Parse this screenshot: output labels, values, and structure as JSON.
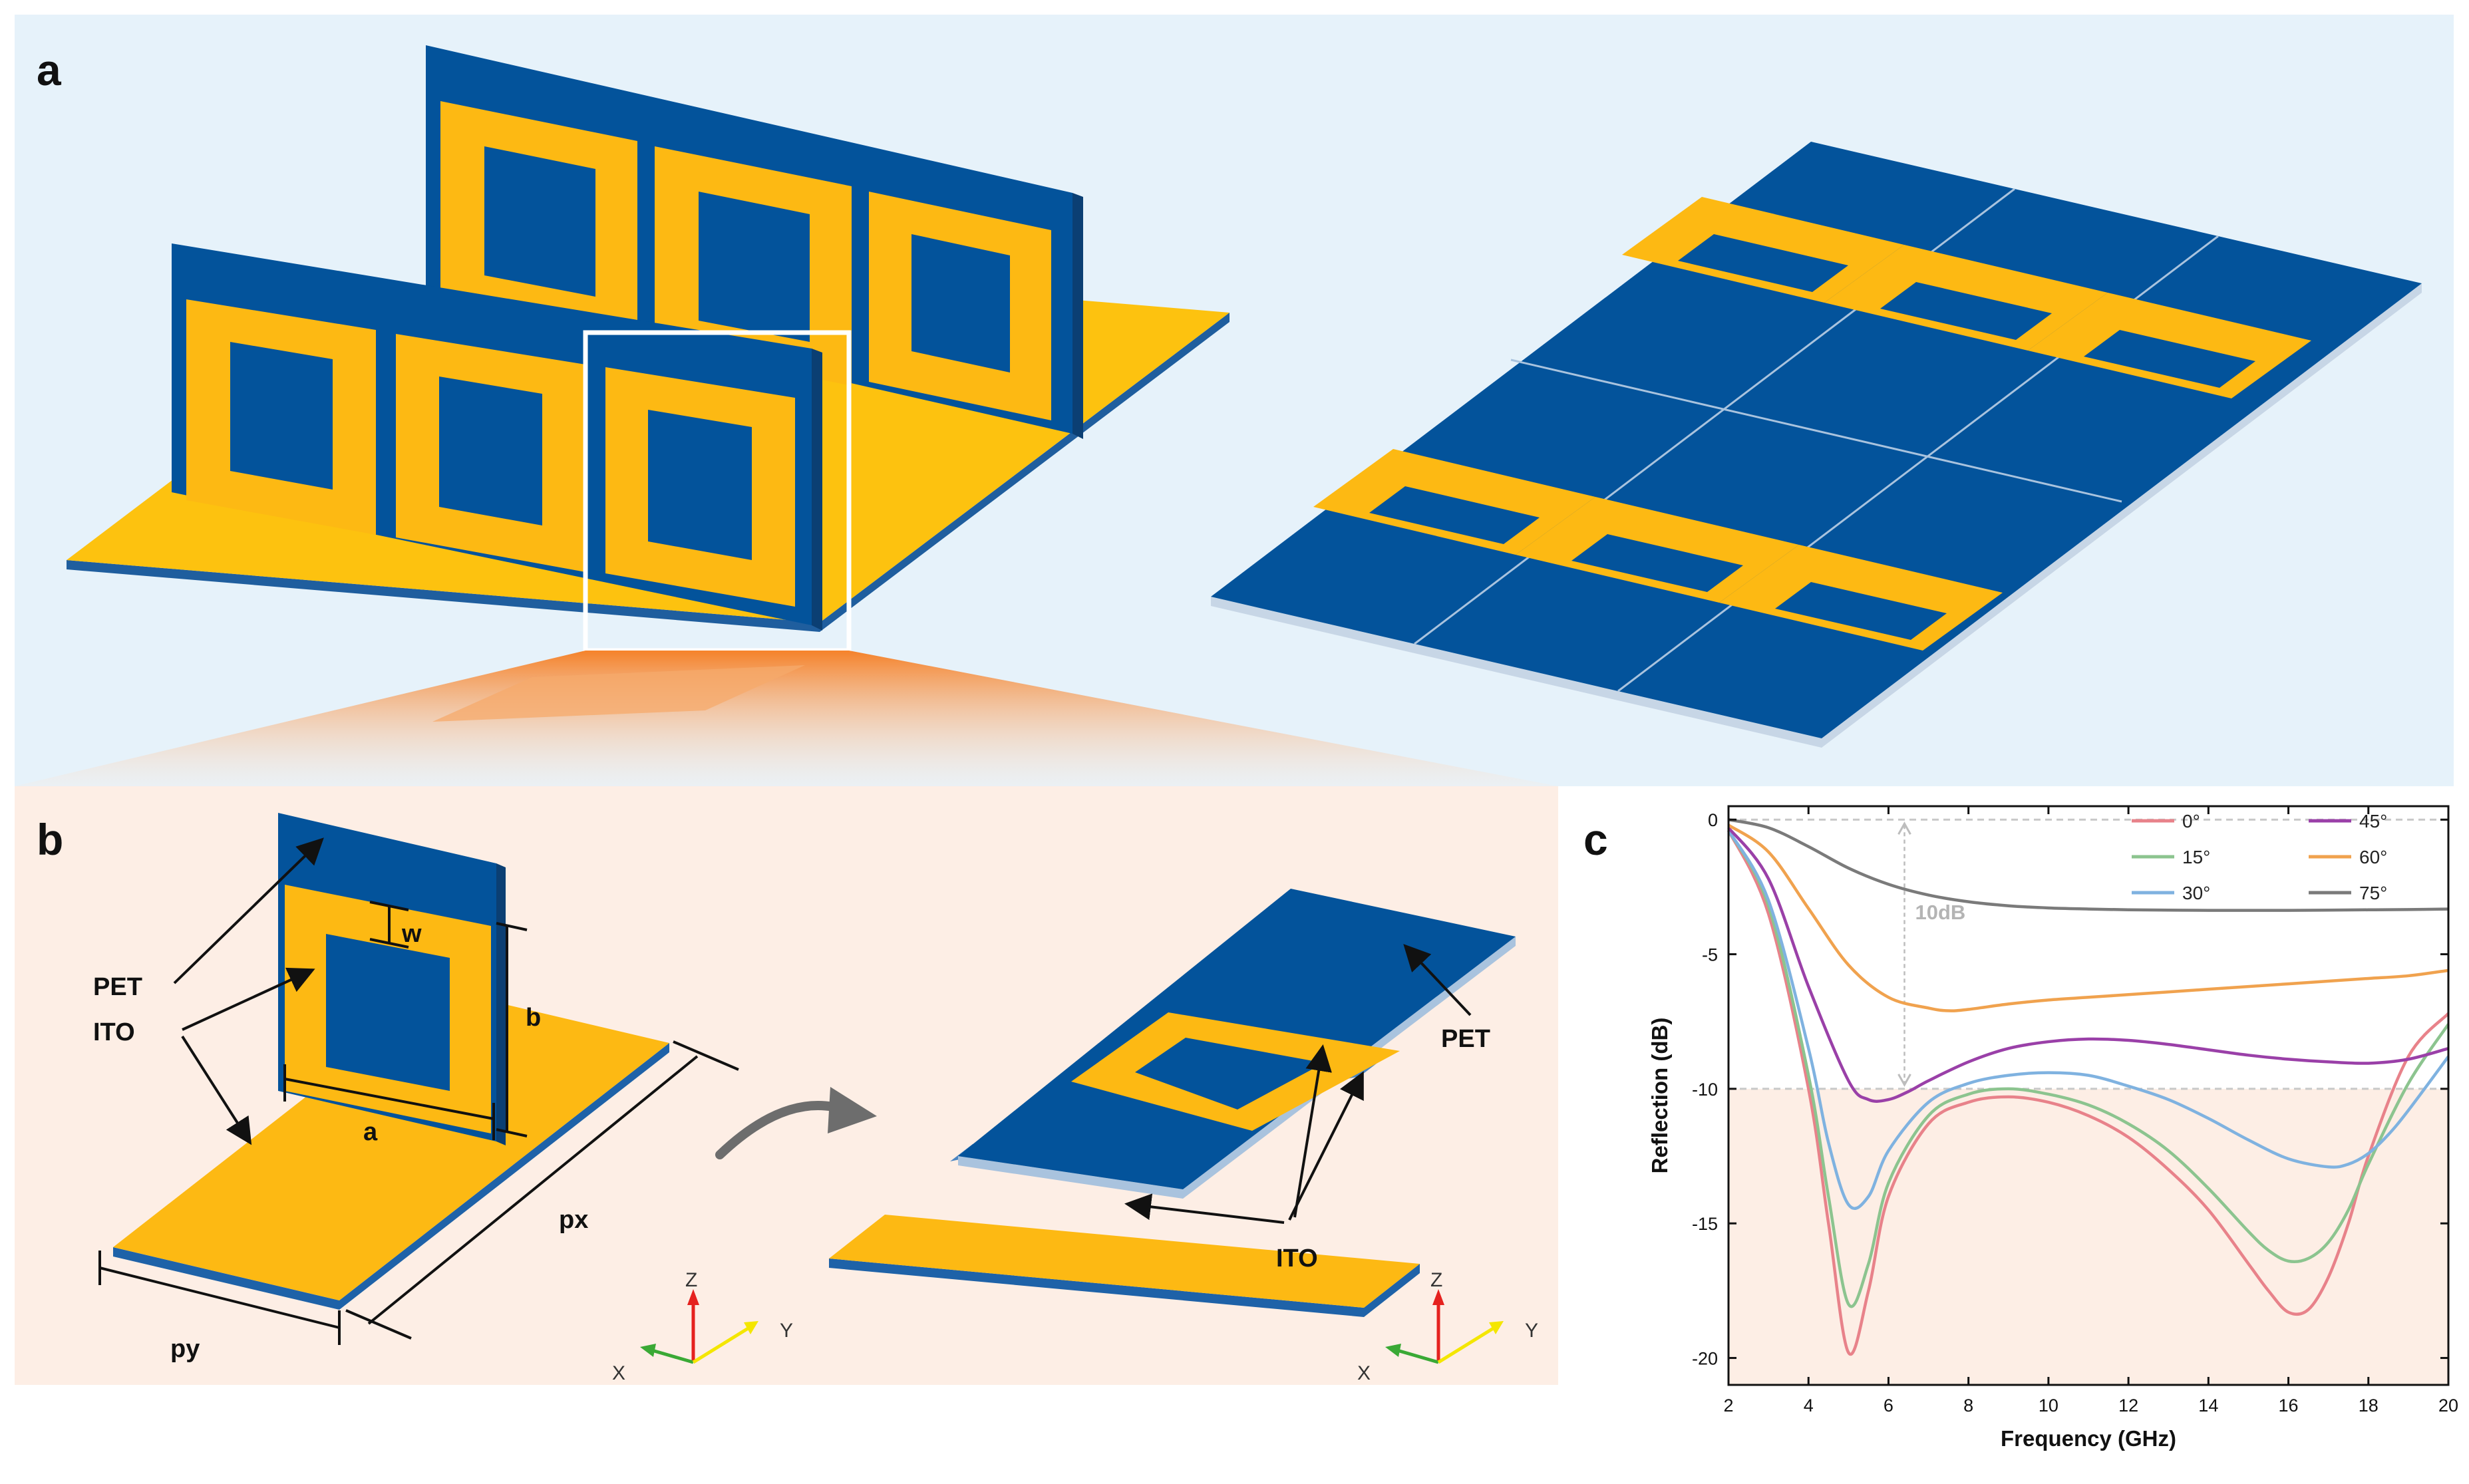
{
  "panels": {
    "a": "a",
    "b": "b",
    "c": "c"
  },
  "labels_b": {
    "pet_left": "PET",
    "ito_left": "ITO",
    "w": "w",
    "b": "b",
    "a": "a",
    "px": "px",
    "py": "py",
    "pet_right": "PET",
    "ito_right": "ITO"
  },
  "axes_triad": {
    "x": "X",
    "y": "Y",
    "z": "Z"
  },
  "colors": {
    "blue": "#03539b",
    "yellow": "#fdb913",
    "panel_a_bg": "#e6f2fa",
    "panel_b_bg": "#fdeee5",
    "chart_shade": "#fdeee5",
    "highlight_box": "#ffffff"
  },
  "chart_data": {
    "type": "line",
    "xlabel": "Frequency (GHz)",
    "ylabel": "Reflection (dB)",
    "xlim": [
      2,
      20
    ],
    "ylim": [
      -21,
      0.5
    ],
    "xticks": [
      2,
      4,
      6,
      8,
      10,
      12,
      14,
      16,
      18,
      20
    ],
    "yticks": [
      0,
      -5,
      -10,
      -15,
      -20
    ],
    "grid": false,
    "legend_position": "top-right",
    "reference_line": -10,
    "annotation": "10dB",
    "series": [
      {
        "name": "0°",
        "color": "#e8828a",
        "x": [
          2,
          3,
          4,
          4.5,
          5,
          5.5,
          6,
          7,
          8,
          9,
          10,
          11,
          12,
          13,
          14,
          15,
          15.5,
          16,
          16.5,
          17,
          17.5,
          18,
          19,
          20
        ],
        "y": [
          -0.4,
          -3.5,
          -10,
          -15,
          -19.8,
          -17.5,
          -14,
          -11.3,
          -10.5,
          -10.3,
          -10.5,
          -11,
          -11.8,
          -13,
          -14.5,
          -16.5,
          -17.5,
          -18.3,
          -18.2,
          -17,
          -15,
          -12.5,
          -8.8,
          -7.2
        ]
      },
      {
        "name": "15°",
        "color": "#8cc48f",
        "x": [
          2,
          3,
          4,
          4.5,
          5,
          5.5,
          6,
          7,
          8,
          9,
          10,
          11,
          12,
          13,
          14,
          15,
          15.5,
          16,
          16.5,
          17,
          17.5,
          18,
          19,
          20
        ],
        "y": [
          -0.4,
          -3.2,
          -9.5,
          -14,
          -18,
          -16.5,
          -13.5,
          -11,
          -10.2,
          -10,
          -10.2,
          -10.6,
          -11.3,
          -12.3,
          -13.7,
          -15.3,
          -16,
          -16.4,
          -16.3,
          -15.7,
          -14.5,
          -12.8,
          -9.8,
          -7.6
        ]
      },
      {
        "name": "30°",
        "color": "#7fb2e0",
        "x": [
          2,
          3,
          4,
          4.5,
          5,
          5.5,
          6,
          7,
          8,
          9,
          10,
          11,
          12,
          13,
          14,
          15,
          16,
          17,
          17.5,
          18,
          18.5,
          19,
          20
        ],
        "y": [
          -0.4,
          -3,
          -8.5,
          -12,
          -14.3,
          -14,
          -12.3,
          -10.5,
          -9.8,
          -9.5,
          -9.4,
          -9.5,
          -9.9,
          -10.4,
          -11.1,
          -11.9,
          -12.6,
          -12.9,
          -12.8,
          -12.4,
          -11.7,
          -10.8,
          -8.8
        ]
      },
      {
        "name": "45°",
        "color": "#9a40a8",
        "x": [
          2,
          3,
          4,
          5,
          5.5,
          6,
          6.5,
          7,
          8,
          9,
          10,
          11,
          12,
          13,
          14,
          15,
          16,
          17,
          18,
          19,
          20
        ],
        "y": [
          -0.3,
          -2.2,
          -6.2,
          -9.7,
          -10.4,
          -10.4,
          -10.1,
          -9.7,
          -9,
          -8.5,
          -8.25,
          -8.15,
          -8.2,
          -8.35,
          -8.55,
          -8.75,
          -8.9,
          -9,
          -9.05,
          -8.9,
          -8.5
        ]
      },
      {
        "name": "60°",
        "color": "#f0a24e",
        "x": [
          2,
          3,
          4,
          5,
          6,
          7,
          7.5,
          8,
          9,
          10,
          11,
          12,
          13,
          14,
          15,
          16,
          17,
          18,
          19,
          20
        ],
        "y": [
          -0.2,
          -1.2,
          -3.3,
          -5.4,
          -6.6,
          -7,
          -7.1,
          -7.05,
          -6.85,
          -6.7,
          -6.6,
          -6.5,
          -6.4,
          -6.3,
          -6.2,
          -6.1,
          -6,
          -5.9,
          -5.8,
          -5.6
        ]
      },
      {
        "name": "75°",
        "color": "#7a7a7a",
        "x": [
          2,
          3,
          4,
          5,
          6,
          7,
          8,
          9,
          10,
          11,
          12,
          13,
          14,
          15,
          16,
          17,
          18,
          19,
          20
        ],
        "y": [
          0,
          -0.3,
          -1,
          -1.8,
          -2.4,
          -2.8,
          -3.05,
          -3.2,
          -3.28,
          -3.32,
          -3.35,
          -3.36,
          -3.37,
          -3.37,
          -3.37,
          -3.36,
          -3.35,
          -3.34,
          -3.32
        ]
      }
    ]
  }
}
